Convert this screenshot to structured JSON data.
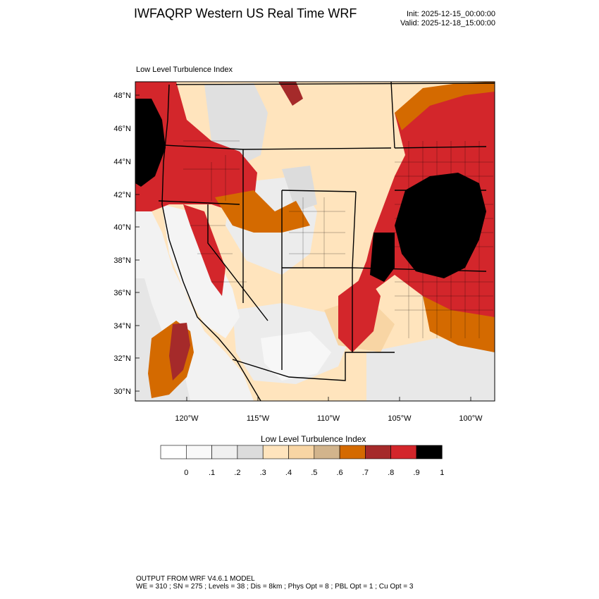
{
  "header": {
    "title": "IWFAQRP Western US Real Time WRF",
    "init": "Init: 2025-12-15_00:00:00",
    "valid": "Valid: 2025-12-18_15:00:00"
  },
  "panel": {
    "title": "Low Level Turbulence Index"
  },
  "map": {
    "lat_labels": [
      "48°N",
      "46°N",
      "44°N",
      "42°N",
      "40°N",
      "38°N",
      "36°N",
      "34°N",
      "32°N",
      "30°N"
    ],
    "lon_labels": [
      "120°W",
      "115°W",
      "110°W",
      "105°W",
      "100°W"
    ],
    "field_colors": {
      "desert": "#f2f2f2",
      "light": "#ffe4bd",
      "tan": "#f8d5a4",
      "orange": "#d46a00",
      "brown": "#a52a2a",
      "red": "#d3262b",
      "black": "#000000"
    }
  },
  "colorbar": {
    "title": "Low Level Turbulence Index",
    "colors": [
      "#ffffff",
      "#f9f9f9",
      "#f0f0f0",
      "#dcdcdc",
      "#ffe4bd",
      "#f8d5a4",
      "#d2b48c",
      "#d46a00",
      "#a52a2a",
      "#d3262b",
      "#000000"
    ],
    "labels": [
      "0",
      ".1",
      ".2",
      ".3",
      ".4",
      ".5",
      ".6",
      ".7",
      ".8",
      ".9",
      "1"
    ]
  },
  "footer": {
    "line1": "OUTPUT FROM WRF V4.6.1 MODEL",
    "line2": "WE = 310 ; SN = 275 ; Levels = 38 ; Dis = 8km ; Phys Opt = 8 ; PBL Opt = 1 ; Cu Opt = 3"
  }
}
